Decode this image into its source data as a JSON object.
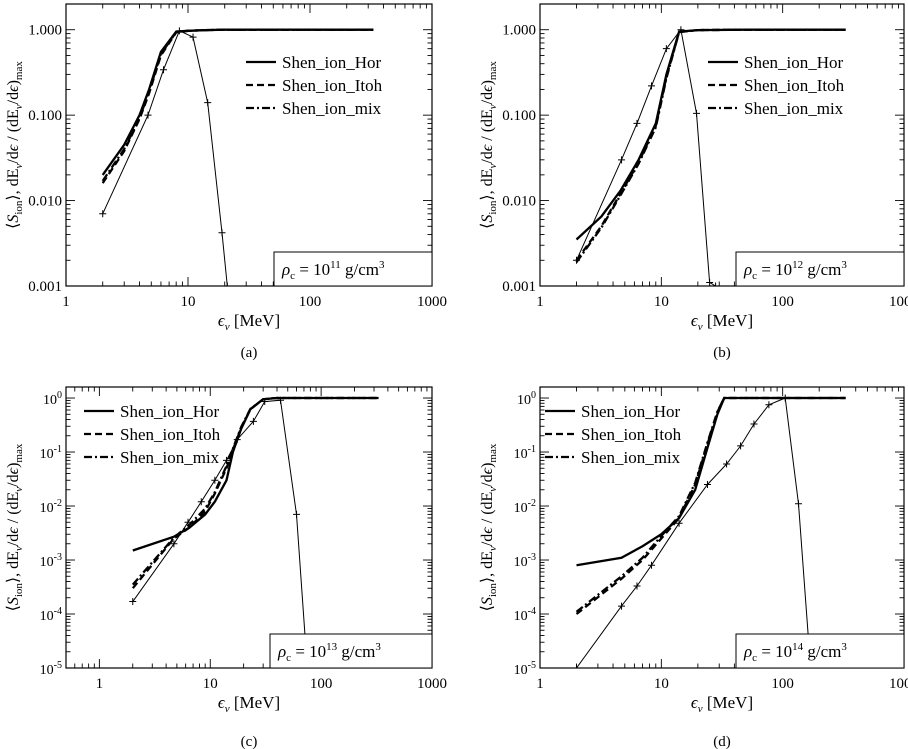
{
  "figure": {
    "panel_labels": [
      "(a)",
      "(b)",
      "(c)",
      "(d)"
    ]
  },
  "chart_data": [
    {
      "type": "line",
      "panel_label": "(a)",
      "x_scale": "log",
      "y_scale": "log",
      "xlim": [
        1,
        1000
      ],
      "ylim": [
        0.001,
        2
      ],
      "xlabel": "ϵν [MeV]",
      "ylabel": "⟨S_ion⟩, dEν/dϵ / (dEν/dϵ)max",
      "x_ticks": [
        1,
        10,
        100,
        1000
      ],
      "x_tick_labels": [
        "1",
        "10",
        "100",
        "1000"
      ],
      "y_ticks": [
        0.001,
        0.01,
        0.1,
        1
      ],
      "y_tick_labels": [
        "0.001",
        "0.010",
        "0.100",
        "1.000"
      ],
      "legend": [
        "Shen_ion_Hor",
        "Shen_ion_Itoh",
        "Shen_ion_mix"
      ],
      "annotation": {
        "rho": "ρc = ",
        "mantissa": "10",
        "exponent": "11",
        "unit": " g/cm",
        "unit_exp": "3"
      },
      "series": [
        {
          "name": "Shen_ion_Hor",
          "style": "solid",
          "x": [
            2,
            3,
            4,
            4.8,
            6,
            8,
            10,
            14,
            20,
            40,
            100,
            330
          ],
          "y": [
            0.02,
            0.045,
            0.1,
            0.2,
            0.55,
            0.95,
            0.97,
            0.99,
            1.0,
            1.0,
            1.0,
            1.0
          ]
        },
        {
          "name": "Shen_ion_Itoh",
          "style": "dashed",
          "x": [
            2,
            3,
            4,
            4.8,
            6,
            8,
            10,
            14,
            20,
            40,
            100,
            330
          ],
          "y": [
            0.016,
            0.038,
            0.09,
            0.18,
            0.5,
            0.93,
            0.97,
            0.99,
            1.0,
            1.0,
            1.0,
            1.0
          ]
        },
        {
          "name": "Shen_ion_mix",
          "style": "dashdot",
          "x": [
            2,
            3,
            4,
            4.8,
            6,
            8,
            10,
            14,
            20,
            40,
            100,
            330
          ],
          "y": [
            0.017,
            0.04,
            0.092,
            0.19,
            0.52,
            0.94,
            0.97,
            0.99,
            1.0,
            1.0,
            1.0,
            1.0
          ]
        },
        {
          "name": "",
          "style": "marker",
          "x": [
            2,
            4.7,
            6.3,
            8.5,
            11,
            14.5,
            19,
            21
          ],
          "y": [
            0.007,
            0.1,
            0.34,
            0.97,
            0.82,
            0.14,
            0.0042,
            0.001
          ]
        }
      ]
    },
    {
      "type": "line",
      "panel_label": "(b)",
      "x_scale": "log",
      "y_scale": "log",
      "xlim": [
        1,
        1000
      ],
      "ylim": [
        0.001,
        2
      ],
      "xlabel": "ϵν [MeV]",
      "ylabel": "⟨S_ion⟩, dEν/dϵ / (dEν/dϵ)max",
      "x_ticks": [
        1,
        10,
        100,
        1000
      ],
      "x_tick_labels": [
        "1",
        "10",
        "100",
        "1000"
      ],
      "y_ticks": [
        0.001,
        0.01,
        0.1,
        1
      ],
      "y_tick_labels": [
        "0.001",
        "0.010",
        "0.100",
        "1.000"
      ],
      "legend": [
        "Shen_ion_Hor",
        "Shen_ion_Itoh",
        "Shen_ion_mix"
      ],
      "annotation": {
        "rho": "ρc = ",
        "mantissa": "10",
        "exponent": "12",
        "unit": " g/cm",
        "unit_exp": "3"
      },
      "series": [
        {
          "name": "Shen_ion_Hor",
          "style": "solid",
          "x": [
            2,
            3.2,
            4.6,
            6.5,
            9,
            11,
            14,
            20,
            50,
            330
          ],
          "y": [
            0.0035,
            0.0065,
            0.013,
            0.03,
            0.08,
            0.3,
            0.95,
            0.99,
            1.0,
            1.0
          ]
        },
        {
          "name": "Shen_ion_Itoh",
          "style": "dashed",
          "x": [
            2,
            3.2,
            4.6,
            6.5,
            9,
            11,
            14,
            20,
            50,
            330
          ],
          "y": [
            0.002,
            0.005,
            0.012,
            0.028,
            0.075,
            0.28,
            0.94,
            0.99,
            1.0,
            1.0
          ]
        },
        {
          "name": "Shen_ion_mix",
          "style": "dashdot",
          "x": [
            2,
            3.2,
            4.6,
            6.5,
            9,
            11,
            14,
            20,
            50,
            330
          ],
          "y": [
            0.0019,
            0.0048,
            0.0115,
            0.027,
            0.072,
            0.27,
            0.94,
            0.99,
            1.0,
            1.0
          ]
        },
        {
          "name": "",
          "style": "marker",
          "x": [
            2,
            4.7,
            6.3,
            8.3,
            11,
            14.5,
            19.5,
            25,
            28
          ],
          "y": [
            0.002,
            0.03,
            0.08,
            0.22,
            0.6,
            1.0,
            0.105,
            0.0011,
            0.001
          ]
        }
      ]
    },
    {
      "type": "line",
      "panel_label": "(c)",
      "x_scale": "log",
      "y_scale": "log",
      "xlim": [
        0.5,
        1000
      ],
      "ylim": [
        1e-05,
        1.6
      ],
      "xlabel": "ϵν [MeV]",
      "ylabel": "⟨S_ion⟩, dEν/dϵ / (dEν/dϵ)max",
      "x_ticks": [
        1,
        10,
        100,
        1000
      ],
      "x_tick_labels": [
        "1",
        "10",
        "100",
        "1000"
      ],
      "y_ticks": [
        1e-05,
        0.0001,
        0.001,
        0.01,
        0.1,
        1
      ],
      "y_tick_labels": [
        {
          "base": "10",
          "exp": "-5"
        },
        {
          "base": "10",
          "exp": "-4"
        },
        {
          "base": "10",
          "exp": "-3"
        },
        {
          "base": "10",
          "exp": "-2"
        },
        {
          "base": "10",
          "exp": "-1"
        },
        {
          "base": "10",
          "exp": "0"
        }
      ],
      "legend": [
        "Shen_ion_Hor",
        "Shen_ion_Itoh",
        "Shen_ion_mix"
      ],
      "annotation": {
        "rho": "ρc = ",
        "mantissa": "10",
        "exponent": "13",
        "unit": " g/cm",
        "unit_exp": "3"
      },
      "series": [
        {
          "name": "Shen_ion_Hor",
          "style": "solid",
          "x": [
            2,
            4.7,
            6.5,
            9,
            11,
            14,
            16,
            19,
            23,
            30,
            40,
            100,
            330
          ],
          "y": [
            0.0015,
            0.0027,
            0.004,
            0.007,
            0.012,
            0.03,
            0.1,
            0.27,
            0.62,
            0.95,
            1.0,
            1.0,
            1.0
          ]
        },
        {
          "name": "Shen_ion_Itoh",
          "style": "dashed",
          "x": [
            2,
            4.7,
            6.5,
            9,
            11,
            14,
            16,
            19,
            23,
            30,
            40,
            100,
            330
          ],
          "y": [
            0.0003,
            0.0025,
            0.004,
            0.008,
            0.017,
            0.05,
            0.11,
            0.28,
            0.62,
            0.95,
            1.0,
            1.0,
            1.0
          ]
        },
        {
          "name": "Shen_ion_mix",
          "style": "dashdot",
          "x": [
            2,
            4.7,
            6.5,
            9,
            11,
            14,
            16,
            19,
            23,
            30,
            40,
            100,
            330
          ],
          "y": [
            0.00035,
            0.0026,
            0.0045,
            0.009,
            0.018,
            0.055,
            0.115,
            0.29,
            0.63,
            0.95,
            1.0,
            1.0,
            1.0
          ]
        },
        {
          "name": "",
          "style": "marker",
          "x": [
            2,
            4.7,
            6.3,
            8.3,
            11,
            14,
            17.5,
            24.5,
            31,
            43,
            60,
            75
          ],
          "y": [
            0.00017,
            0.002,
            0.005,
            0.012,
            0.03,
            0.07,
            0.17,
            0.37,
            0.86,
            0.91,
            0.007,
            1e-05
          ]
        }
      ]
    },
    {
      "type": "line",
      "panel_label": "(d)",
      "x_scale": "log",
      "y_scale": "log",
      "xlim": [
        1,
        1000
      ],
      "ylim": [
        1e-05,
        1.6
      ],
      "xlabel": "ϵν [MeV]",
      "ylabel": "⟨S_ion⟩, dEν/dϵ / (dEν/dϵ)max",
      "x_ticks": [
        1,
        10,
        100,
        1000
      ],
      "x_tick_labels": [
        "1",
        "10",
        "100",
        "1000"
      ],
      "y_ticks": [
        1e-05,
        0.0001,
        0.001,
        0.01,
        0.1,
        1
      ],
      "y_tick_labels": [
        {
          "base": "10",
          "exp": "-5"
        },
        {
          "base": "10",
          "exp": "-4"
        },
        {
          "base": "10",
          "exp": "-3"
        },
        {
          "base": "10",
          "exp": "-2"
        },
        {
          "base": "10",
          "exp": "-1"
        },
        {
          "base": "10",
          "exp": "0"
        }
      ],
      "legend": [
        "Shen_ion_Hor",
        "Shen_ion_Itoh",
        "Shen_ion_mix"
      ],
      "annotation": {
        "rho": "ρc = ",
        "mantissa": "10",
        "exponent": "14",
        "unit": " g/cm",
        "unit_exp": "3"
      },
      "series": [
        {
          "name": "Shen_ion_Hor",
          "style": "solid",
          "x": [
            2,
            4.7,
            7,
            10,
            14,
            19,
            24,
            29,
            33,
            40,
            100,
            330
          ],
          "y": [
            0.0008,
            0.0011,
            0.0018,
            0.003,
            0.006,
            0.02,
            0.12,
            0.5,
            1.0,
            1.0,
            1.0,
            1.0
          ]
        },
        {
          "name": "Shen_ion_Itoh",
          "style": "dashed",
          "x": [
            2,
            4.7,
            7,
            10,
            14,
            19,
            24,
            29,
            33,
            40,
            100,
            330
          ],
          "y": [
            0.0001,
            0.00045,
            0.001,
            0.0025,
            0.006,
            0.025,
            0.14,
            0.55,
            1.0,
            1.0,
            1.0,
            1.0
          ]
        },
        {
          "name": "Shen_ion_mix",
          "style": "dashdot",
          "x": [
            2,
            4.7,
            7,
            10,
            14,
            19,
            24,
            29,
            33,
            40,
            100,
            330
          ],
          "y": [
            0.00011,
            0.0005,
            0.0011,
            0.0028,
            0.0065,
            0.027,
            0.15,
            0.56,
            1.0,
            1.0,
            1.0,
            1.0
          ]
        },
        {
          "name": "",
          "style": "marker",
          "x": [
            2,
            4.7,
            6.3,
            8.3,
            14,
            24,
            34.5,
            45,
            58,
            77,
            105,
            135,
            170
          ],
          "y": [
            1e-05,
            0.00014,
            0.00033,
            0.0008,
            0.0048,
            0.025,
            0.06,
            0.13,
            0.33,
            0.75,
            1.0,
            0.011,
            1e-05
          ]
        }
      ]
    }
  ]
}
